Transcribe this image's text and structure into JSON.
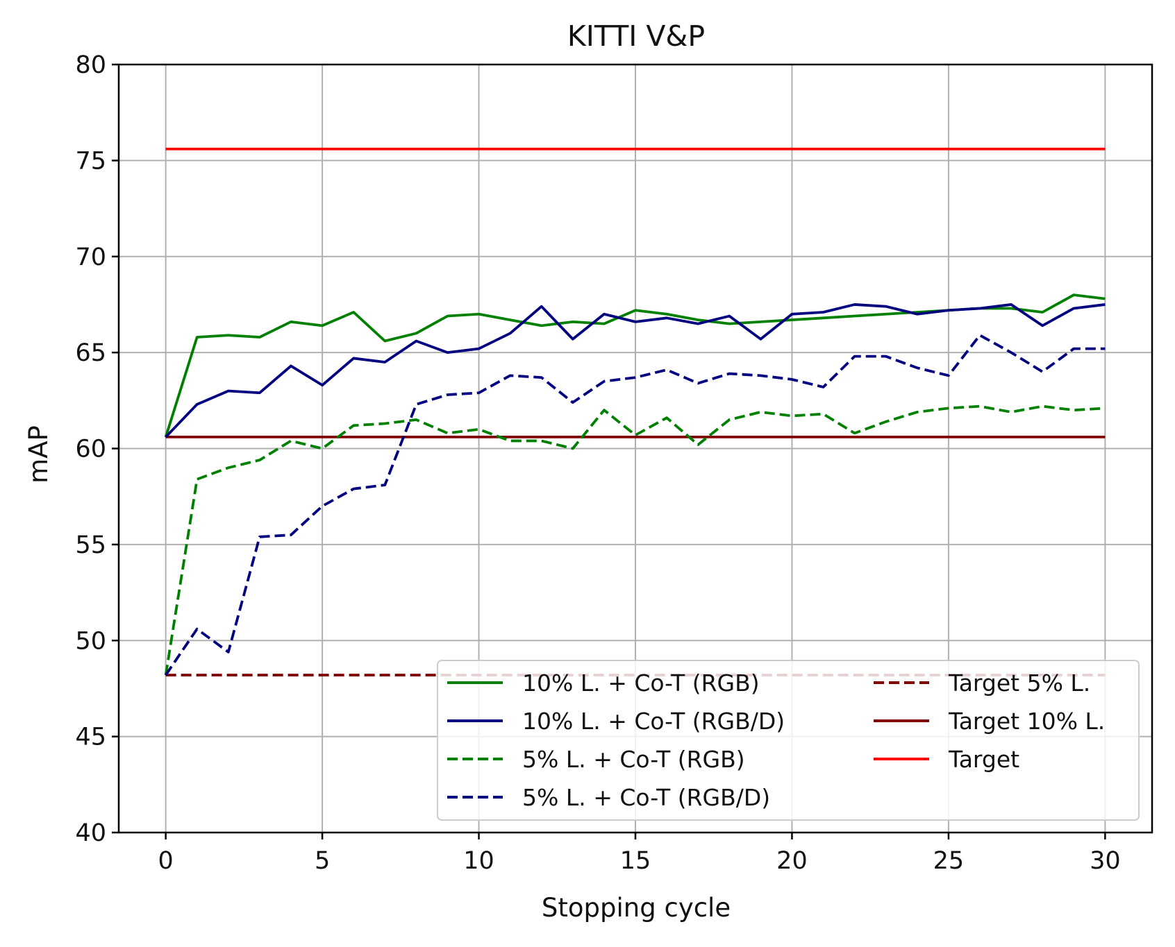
{
  "chart_data": {
    "type": "line",
    "title": "KITTI V&P",
    "xlabel": "Stopping cycle",
    "ylabel": "mAP",
    "xlim": [
      -1.5,
      31.5
    ],
    "ylim": [
      40,
      80
    ],
    "xticks": [
      0,
      5,
      10,
      15,
      20,
      25,
      30
    ],
    "yticks": [
      40,
      45,
      50,
      55,
      60,
      65,
      70,
      75,
      80
    ],
    "grid": true,
    "legend": {
      "placement": "lower-right",
      "columns": 2
    },
    "x": [
      0,
      1,
      2,
      3,
      4,
      5,
      6,
      7,
      8,
      9,
      10,
      11,
      12,
      13,
      14,
      15,
      16,
      17,
      18,
      19,
      20,
      21,
      22,
      23,
      24,
      25,
      26,
      27,
      28,
      29,
      30
    ],
    "series": [
      {
        "name": "10% L. + Co-T (RGB)",
        "color": "#008000",
        "dash": "solid",
        "values": [
          60.6,
          65.8,
          65.9,
          65.8,
          66.6,
          66.4,
          67.1,
          65.6,
          66.0,
          66.9,
          67.0,
          66.7,
          66.4,
          66.6,
          66.5,
          67.2,
          67.0,
          66.7,
          66.5,
          66.6,
          66.7,
          66.8,
          66.9,
          67.0,
          67.1,
          67.2,
          67.3,
          67.3,
          67.1,
          68.0,
          67.8
        ]
      },
      {
        "name": "10% L. + Co-T (RGB/D)",
        "color": "#000080",
        "dash": "solid",
        "values": [
          60.6,
          62.3,
          63.0,
          62.9,
          64.3,
          63.3,
          64.7,
          64.5,
          65.6,
          65.0,
          65.2,
          66.0,
          67.4,
          65.7,
          67.0,
          66.6,
          66.8,
          66.5,
          66.9,
          65.7,
          67.0,
          67.1,
          67.5,
          67.4,
          67.0,
          67.2,
          67.3,
          67.5,
          66.4,
          67.3,
          67.5
        ]
      },
      {
        "name": "5% L. + Co-T (RGB)",
        "color": "#008000",
        "dash": "dashed",
        "values": [
          48.2,
          58.4,
          59.0,
          59.4,
          60.4,
          60.0,
          61.2,
          61.3,
          61.5,
          60.8,
          61.0,
          60.4,
          60.4,
          60.0,
          62.0,
          60.7,
          61.6,
          60.2,
          61.5,
          61.9,
          61.7,
          61.8,
          60.8,
          61.4,
          61.9,
          62.1,
          62.2,
          61.9,
          62.2,
          62.0,
          62.1
        ]
      },
      {
        "name": "5% L. + Co-T (RGB/D)",
        "color": "#000080",
        "dash": "dashed",
        "values": [
          48.2,
          50.6,
          49.4,
          55.4,
          55.5,
          57.0,
          57.9,
          58.1,
          62.3,
          62.8,
          62.9,
          63.8,
          63.7,
          62.4,
          63.5,
          63.7,
          64.1,
          63.4,
          63.9,
          63.8,
          63.6,
          63.2,
          64.8,
          64.8,
          64.2,
          63.8,
          65.9,
          65.0,
          64.0,
          65.2,
          65.2
        ]
      },
      {
        "name": "Target 5% L.",
        "color": "#800000",
        "dash": "dashed",
        "values": [
          48.2,
          48.2,
          48.2,
          48.2,
          48.2,
          48.2,
          48.2,
          48.2,
          48.2,
          48.2,
          48.2,
          48.2,
          48.2,
          48.2,
          48.2,
          48.2,
          48.2,
          48.2,
          48.2,
          48.2,
          48.2,
          48.2,
          48.2,
          48.2,
          48.2,
          48.2,
          48.2,
          48.2,
          48.2,
          48.2,
          48.2
        ]
      },
      {
        "name": "Target 10% L.",
        "color": "#800000",
        "dash": "solid",
        "values": [
          60.6,
          60.6,
          60.6,
          60.6,
          60.6,
          60.6,
          60.6,
          60.6,
          60.6,
          60.6,
          60.6,
          60.6,
          60.6,
          60.6,
          60.6,
          60.6,
          60.6,
          60.6,
          60.6,
          60.6,
          60.6,
          60.6,
          60.6,
          60.6,
          60.6,
          60.6,
          60.6,
          60.6,
          60.6,
          60.6,
          60.6
        ]
      },
      {
        "name": "Target",
        "color": "#ff0000",
        "dash": "solid",
        "values": [
          75.6,
          75.6,
          75.6,
          75.6,
          75.6,
          75.6,
          75.6,
          75.6,
          75.6,
          75.6,
          75.6,
          75.6,
          75.6,
          75.6,
          75.6,
          75.6,
          75.6,
          75.6,
          75.6,
          75.6,
          75.6,
          75.6,
          75.6,
          75.6,
          75.6,
          75.6,
          75.6,
          75.6,
          75.6,
          75.6,
          75.6
        ]
      }
    ]
  }
}
